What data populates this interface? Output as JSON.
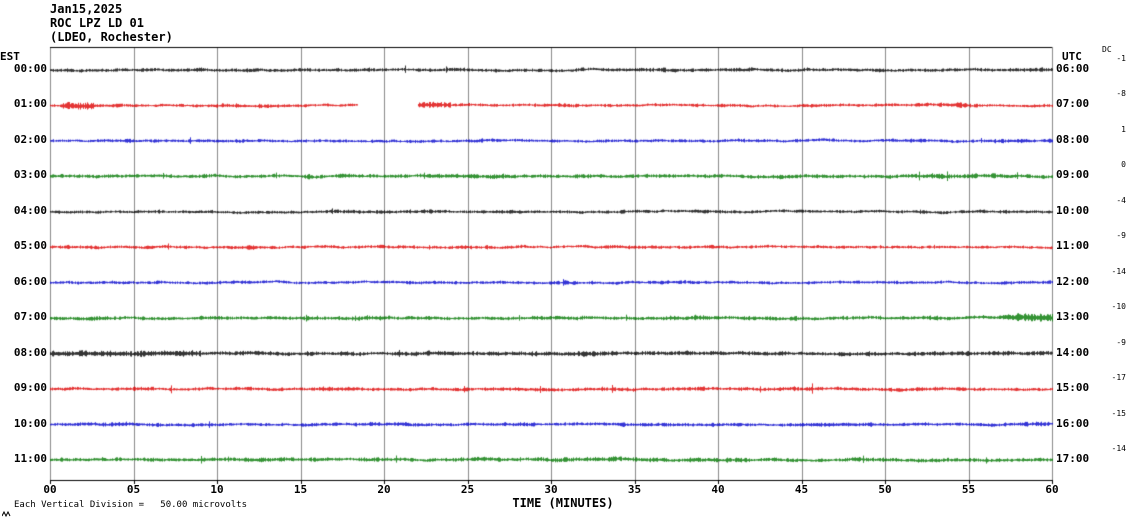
{
  "header": {
    "date": "Jan15,2025",
    "station": "ROC LPZ LD 01",
    "location": "(LDEO, Rochester)"
  },
  "axes": {
    "left_label": "EST",
    "right_label": "UTC",
    "dc_label": "DC",
    "x_ticks": [
      "00",
      "05",
      "10",
      "15",
      "20",
      "25",
      "30",
      "35",
      "40",
      "45",
      "50",
      "55",
      "60"
    ],
    "x_title": "TIME (MINUTES)"
  },
  "footer": {
    "scale_note": "Each Vertical Division =   50.00 microvolts"
  },
  "colors": {
    "black": "#000000",
    "red": "#dd0000",
    "blue": "#0000cc",
    "green": "#007700",
    "grid": "#888888"
  },
  "chart_data": {
    "type": "line",
    "kind": "seismogram-helicorder",
    "x_range_minutes": [
      0,
      60
    ],
    "minutes_per_row": 60,
    "vertical_division_microvolts": 50.0,
    "rows": [
      {
        "est": "00:00",
        "utc": "06:00",
        "color": "black",
        "dc": "-1",
        "amp": 1.0
      },
      {
        "est": "01:00",
        "utc": "07:00",
        "color": "red",
        "dc": "-8",
        "amp": 0.9
      },
      {
        "est": "02:00",
        "utc": "08:00",
        "color": "blue",
        "dc": "1",
        "amp": 0.9
      },
      {
        "est": "03:00",
        "utc": "09:00",
        "color": "green",
        "dc": "0",
        "amp": 1.1
      },
      {
        "est": "04:00",
        "utc": "10:00",
        "color": "black",
        "dc": "-4",
        "amp": 0.9
      },
      {
        "est": "05:00",
        "utc": "11:00",
        "color": "red",
        "dc": "-9",
        "amp": 0.9
      },
      {
        "est": "06:00",
        "utc": "12:00",
        "color": "blue",
        "dc": "-14",
        "amp": 0.9
      },
      {
        "est": "07:00",
        "utc": "13:00",
        "color": "green",
        "dc": "-10",
        "amp": 1.1
      },
      {
        "est": "08:00",
        "utc": "14:00",
        "color": "black",
        "dc": "-9",
        "amp": 1.2
      },
      {
        "est": "09:00",
        "utc": "15:00",
        "color": "red",
        "dc": "-17",
        "amp": 1.0
      },
      {
        "est": "10:00",
        "utc": "16:00",
        "color": "blue",
        "dc": "-15",
        "amp": 1.0
      },
      {
        "est": "11:00",
        "utc": "17:00",
        "color": "green",
        "dc": "-14",
        "amp": 1.1
      }
    ],
    "events": [
      {
        "row": 1,
        "type": "burst",
        "start_min": 0.8,
        "end_min": 2.6,
        "gain": 2.8
      },
      {
        "row": 1,
        "type": "gap",
        "start_min": 18.4,
        "end_min": 22.0
      },
      {
        "row": 1,
        "type": "burst",
        "start_min": 22.0,
        "end_min": 24.0,
        "gain": 2.0
      },
      {
        "row": 7,
        "type": "burst",
        "start_min": 57.0,
        "end_min": 60.0,
        "gain": 2.0
      },
      {
        "row": 8,
        "type": "burst",
        "start_min": 0.0,
        "end_min": 9.0,
        "gain": 1.5
      }
    ]
  }
}
